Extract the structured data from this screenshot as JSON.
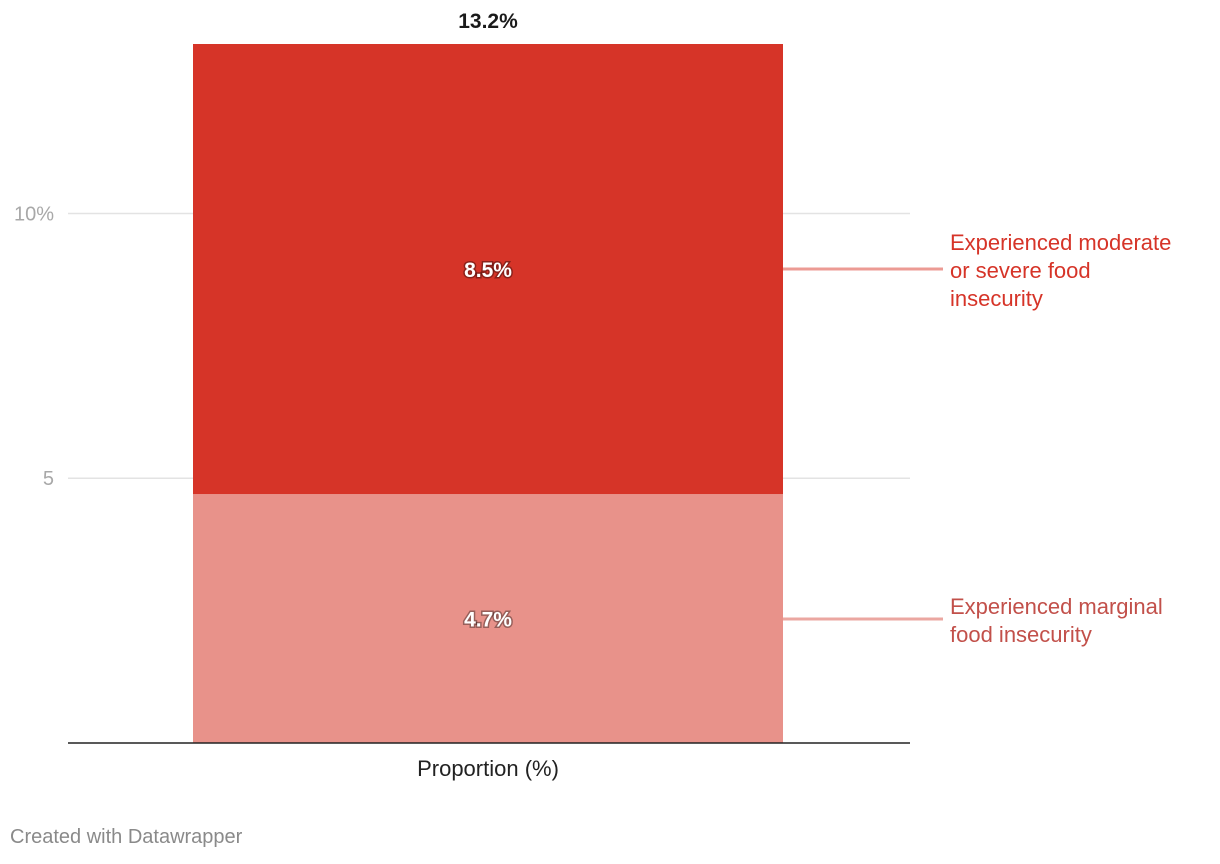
{
  "chart_data": {
    "type": "bar",
    "stacked": true,
    "categories": [
      "Proportion (%)"
    ],
    "series": [
      {
        "name": "Experienced marginal food insecurity",
        "values": [
          4.7
        ],
        "value_labels": [
          "4.7%"
        ],
        "color": "#e8928a"
      },
      {
        "name": "Experienced moderate or severe food insecurity",
        "values": [
          8.5
        ],
        "value_labels": [
          "8.5%"
        ],
        "color": "#d63428"
      }
    ],
    "totals": [
      13.2
    ],
    "total_labels": [
      "13.2%"
    ],
    "y_ticks": [
      {
        "value": 5,
        "label": "5"
      },
      {
        "value": 10,
        "label": "10%"
      }
    ],
    "ylim": [
      0,
      13.2
    ],
    "grid": true,
    "legend_placement": "right, inline labels",
    "legend_text_colors": [
      "#c2504a",
      "#d63428"
    ],
    "title": "",
    "xlabel": "",
    "ylabel": ""
  },
  "footer": {
    "credit": "Created with Datawrapper"
  }
}
